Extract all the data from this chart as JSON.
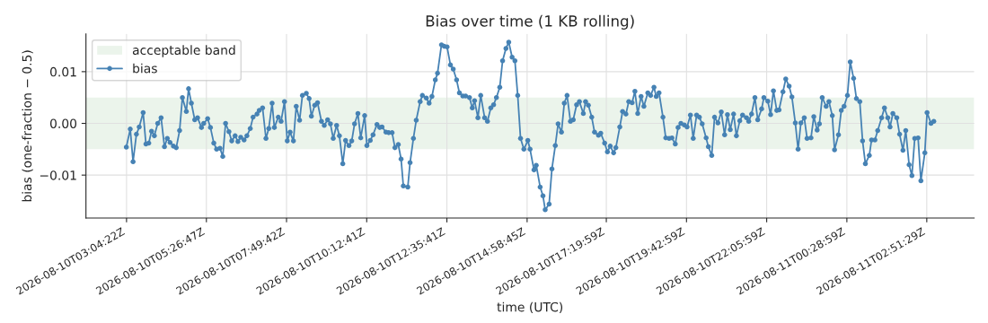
{
  "chart_data": {
    "type": "line",
    "title": "Bias over time (1 KB rolling)",
    "xlabel": "time (UTC)",
    "ylabel": "bias (one-fraction − 0.5)",
    "x": [
      "2026-08-10T03:04",
      "2026-08-10T03:11",
      "2026-08-10T03:16",
      "2026-08-10T03:22",
      "2026-08-10T03:27",
      "2026-08-10T03:34",
      "2026-08-10T03:39",
      "2026-08-10T03:44",
      "2026-08-10T03:49",
      "2026-08-10T03:54",
      "2026-08-10T04:00",
      "2026-08-10T04:06",
      "2026-08-10T04:12",
      "2026-08-10T04:17",
      "2026-08-10T04:22",
      "2026-08-10T04:28",
      "2026-08-10T04:33",
      "2026-08-10T04:39",
      "2026-08-10T04:44",
      "2026-08-10T04:51",
      "2026-08-10T04:55",
      "2026-08-10T05:00",
      "2026-08-10T05:06",
      "2026-08-10T05:11",
      "2026-08-10T05:18",
      "2026-08-10T05:22",
      "2026-08-10T05:29",
      "2026-08-10T05:34",
      "2026-08-10T05:40",
      "2026-08-10T05:45",
      "2026-08-10T05:51",
      "2026-08-10T05:56",
      "2026-08-10T06:01",
      "2026-08-10T06:07",
      "2026-08-10T06:12",
      "2026-08-10T06:18",
      "2026-08-10T06:23",
      "2026-08-10T06:28",
      "2026-08-10T06:34",
      "2026-08-10T06:39",
      "2026-08-10T06:45",
      "2026-08-10T06:50",
      "2026-08-10T06:57",
      "2026-08-10T07:01",
      "2026-08-10T07:07",
      "2026-08-10T07:13",
      "2026-08-10T07:18",
      "2026-08-10T07:24",
      "2026-08-10T07:28",
      "2026-08-10T07:35",
      "2026-08-10T07:40",
      "2026-08-10T07:46",
      "2026-08-10T07:51",
      "2026-08-10T07:56",
      "2026-08-10T08:02",
      "2026-08-10T08:07",
      "2026-08-10T08:13",
      "2026-08-10T08:18",
      "2026-08-10T08:25",
      "2026-08-10T08:30",
      "2026-08-10T08:34",
      "2026-08-10T08:40",
      "2026-08-10T08:45",
      "2026-08-10T08:52",
      "2026-08-10T08:57",
      "2026-08-10T09:03",
      "2026-08-10T09:08",
      "2026-08-10T09:13",
      "2026-08-10T09:19",
      "2026-08-10T09:24",
      "2026-08-10T09:30",
      "2026-08-10T09:35",
      "2026-08-10T09:41",
      "2026-08-10T09:46",
      "2026-08-10T09:51",
      "2026-08-10T09:57",
      "2026-08-10T10:02",
      "2026-08-10T10:09",
      "2026-08-10T10:13",
      "2026-08-10T10:19",
      "2026-08-10T10:24",
      "2026-08-10T10:31",
      "2026-08-10T10:36",
      "2026-08-10T10:40",
      "2026-08-10T10:47",
      "2026-08-10T10:52",
      "2026-08-10T10:58",
      "2026-08-10T11:03",
      "2026-08-10T11:09",
      "2026-08-10T11:14",
      "2026-08-10T11:18",
      "2026-08-10T11:26",
      "2026-08-10T11:30",
      "2026-08-10T11:36",
      "2026-08-10T11:41",
      "2026-08-10T11:48",
      "2026-08-10T11:52",
      "2026-08-10T11:59",
      "2026-08-10T12:04",
      "2026-08-10T12:09",
      "2026-08-10T12:15",
      "2026-08-10T12:19",
      "2026-08-10T12:26",
      "2026-08-10T12:31",
      "2026-08-10T12:36",
      "2026-08-10T12:42",
      "2026-08-10T12:47",
      "2026-08-10T12:53",
      "2026-08-10T12:58",
      "2026-08-10T13:04",
      "2026-08-10T13:09",
      "2026-08-10T13:16",
      "2026-08-10T13:21",
      "2026-08-10T13:25",
      "2026-08-10T13:31",
      "2026-08-10T13:36",
      "2026-08-10T13:43",
      "2026-08-10T13:48",
      "2026-08-10T13:54",
      "2026-08-10T13:59",
      "2026-08-10T14:04",
      "2026-08-10T14:10",
      "2026-08-10T14:15",
      "2026-08-10T14:21",
      "2026-08-10T14:26",
      "2026-08-10T14:32",
      "2026-08-10T14:37",
      "2026-08-10T14:42",
      "2026-08-10T14:47",
      "2026-08-10T14:53",
      "2026-08-10T15:00",
      "2026-08-10T15:04",
      "2026-08-10T15:11",
      "2026-08-10T15:15",
      "2026-08-10T15:22",
      "2026-08-10T15:27",
      "2026-08-10T15:31",
      "2026-08-10T15:38",
      "2026-08-10T15:43",
      "2026-08-10T15:49",
      "2026-08-10T15:54",
      "2026-08-10T16:00",
      "2026-08-10T16:05",
      "2026-08-10T16:10",
      "2026-08-10T16:16",
      "2026-08-10T16:21",
      "2026-08-10T16:27",
      "2026-08-10T16:32",
      "2026-08-10T16:39",
      "2026-08-10T16:43",
      "2026-08-10T16:48",
      "2026-08-10T16:54",
      "2026-08-10T16:59",
      "2026-08-10T17:06",
      "2026-08-10T17:10",
      "2026-08-10T17:17",
      "2026-08-10T17:22",
      "2026-08-10T17:27",
      "2026-08-10T17:33",
      "2026-08-10T17:37",
      "2026-08-10T17:44",
      "2026-08-10T17:49",
      "2026-08-10T17:55",
      "2026-08-10T18:00",
      "2026-08-10T18:06",
      "2026-08-10T18:11",
      "2026-08-10T18:16",
      "2026-08-10T18:22",
      "2026-08-10T18:27",
      "2026-08-10T18:34",
      "2026-08-10T18:39",
      "2026-08-10T18:45",
      "2026-08-10T18:49",
      "2026-08-10T18:54",
      "2026-08-10T19:01",
      "2026-08-10T19:06",
      "2026-08-10T19:12",
      "2026-08-10T19:17",
      "2026-08-10T19:23",
      "2026-08-10T19:28",
      "2026-08-10T19:33",
      "2026-08-10T19:39",
      "2026-08-10T19:44",
      "2026-08-10T19:50",
      "2026-08-10T19:55",
      "2026-08-10T20:01",
      "2026-08-10T20:06",
      "2026-08-10T20:11",
      "2026-08-10T20:18",
      "2026-08-10T20:22",
      "2026-08-10T20:28",
      "2026-08-10T20:33",
      "2026-08-10T20:39",
      "2026-08-10T20:45",
      "2026-08-10T20:51",
      "2026-08-10T20:56",
      "2026-08-10T21:01",
      "2026-08-10T21:07",
      "2026-08-10T21:12",
      "2026-08-10T21:18",
      "2026-08-10T21:23",
      "2026-08-10T21:30",
      "2026-08-10T21:34",
      "2026-08-10T21:39",
      "2026-08-10T21:45",
      "2026-08-10T21:50",
      "2026-08-10T21:57",
      "2026-08-10T22:01",
      "2026-08-10T22:08",
      "2026-08-10T22:13",
      "2026-08-10T22:18",
      "2026-08-10T22:24",
      "2026-08-10T22:28",
      "2026-08-10T22:35",
      "2026-08-10T22:40",
      "2026-08-10T22:46",
      "2026-08-10T22:51",
      "2026-08-10T22:57",
      "2026-08-10T23:02",
      "2026-08-10T23:07",
      "2026-08-10T23:13",
      "2026-08-10T23:18",
      "2026-08-10T23:25",
      "2026-08-10T23:30",
      "2026-08-10T23:36",
      "2026-08-10T23:40",
      "2026-08-10T23:45",
      "2026-08-10T23:52",
      "2026-08-10T23:57",
      "2026-08-11T00:03",
      "2026-08-11T00:07",
      "2026-08-11T00:14",
      "2026-08-11T00:19",
      "2026-08-11T00:24",
      "2026-08-11T00:30",
      "2026-08-11T00:35",
      "2026-08-11T00:41",
      "2026-08-11T00:46",
      "2026-08-11T00:52",
      "2026-08-11T00:57",
      "2026-08-11T01:02",
      "2026-08-11T01:09",
      "2026-08-11T01:13",
      "2026-08-11T01:19",
      "2026-08-11T01:24",
      "2026-08-11T01:31",
      "2026-08-11T01:36",
      "2026-08-11T01:42",
      "2026-08-11T01:46",
      "2026-08-11T01:51",
      "2026-08-11T01:58",
      "2026-08-11T02:03",
      "2026-08-11T02:09",
      "2026-08-11T02:14",
      "2026-08-11T02:20",
      "2026-08-11T02:25",
      "2026-08-11T02:30",
      "2026-08-11T02:36",
      "2026-08-11T02:41",
      "2026-08-11T02:48",
      "2026-08-11T02:52",
      "2026-08-11T02:59",
      "2026-08-11T03:04"
    ],
    "series": [
      {
        "name": "bias",
        "color": "#4682b4",
        "values": [
          -0.0046,
          -0.0011,
          -0.0074,
          -0.0021,
          -0.0007,
          0.0021,
          -0.004,
          -0.0038,
          -0.0015,
          -0.0024,
          0.0,
          0.0011,
          -0.0045,
          -0.0029,
          -0.0037,
          -0.0044,
          -0.0047,
          -0.0014,
          0.005,
          0.0023,
          0.0067,
          0.0039,
          0.0007,
          0.0011,
          -0.0008,
          0.0,
          0.0009,
          -0.0008,
          -0.0038,
          -0.005,
          -0.0048,
          -0.0064,
          0.0,
          -0.0016,
          -0.0034,
          -0.0024,
          -0.0035,
          -0.0027,
          -0.0032,
          -0.0024,
          -0.001,
          0.0012,
          0.0018,
          0.0025,
          0.003,
          -0.0029,
          -0.001,
          0.0039,
          -0.0008,
          0.0012,
          0.0004,
          0.0042,
          -0.0034,
          -0.0017,
          -0.0034,
          0.0033,
          0.0006,
          0.0054,
          0.0058,
          0.0048,
          0.0014,
          0.0035,
          0.004,
          0.0004,
          -0.0004,
          0.0007,
          -0.0001,
          -0.0029,
          -0.0004,
          -0.0024,
          -0.0078,
          -0.0033,
          -0.0043,
          -0.0034,
          -0.0001,
          0.0019,
          -0.0028,
          0.0015,
          -0.0043,
          -0.0033,
          -0.0022,
          -0.0002,
          -0.0008,
          -0.0007,
          -0.0017,
          -0.0018,
          -0.0018,
          -0.0047,
          -0.0041,
          -0.0069,
          -0.0121,
          -0.0123,
          -0.0076,
          -0.0029,
          0.0006,
          0.0042,
          0.0054,
          0.0049,
          0.0039,
          0.0052,
          0.0084,
          0.0097,
          0.0152,
          0.0149,
          0.0148,
          0.0113,
          0.0105,
          0.0084,
          0.0059,
          0.0053,
          0.0053,
          0.005,
          0.003,
          0.0044,
          0.0011,
          0.0054,
          0.0011,
          0.0004,
          0.003,
          0.0036,
          0.005,
          0.007,
          0.0121,
          0.0145,
          0.0157,
          0.0128,
          0.0121,
          0.0054,
          -0.0029,
          -0.005,
          -0.0033,
          -0.005,
          -0.009,
          -0.0081,
          -0.0123,
          -0.014,
          -0.0167,
          -0.0156,
          -0.0088,
          -0.0043,
          -0.0001,
          -0.0017,
          0.0039,
          0.0054,
          0.0004,
          0.0007,
          0.0036,
          0.0042,
          0.0019,
          0.0042,
          0.0035,
          0.0012,
          -0.0017,
          -0.0023,
          -0.0019,
          -0.0038,
          -0.0055,
          -0.0044,
          -0.0057,
          -0.0047,
          -0.0007,
          0.0023,
          0.0018,
          0.0042,
          0.004,
          0.0062,
          0.0019,
          0.0052,
          0.0033,
          0.0059,
          0.0054,
          0.007,
          0.0052,
          0.0059,
          0.0012,
          -0.0028,
          -0.0029,
          -0.0028,
          -0.004,
          -0.0008,
          0.0,
          -0.0003,
          -0.0007,
          0.0016,
          -0.0029,
          0.0016,
          0.0012,
          -0.0001,
          -0.0028,
          -0.0045,
          -0.0062,
          0.0012,
          0.0001,
          0.0022,
          -0.0022,
          0.0017,
          -0.0012,
          0.0018,
          -0.0024,
          0.0005,
          0.0016,
          0.0011,
          0.0004,
          0.0018,
          0.005,
          0.0007,
          0.0028,
          0.005,
          0.0043,
          0.0017,
          0.0063,
          0.0025,
          0.0026,
          0.0061,
          0.0086,
          0.0072,
          0.0051,
          0.0001,
          -0.005,
          0.0001,
          0.0011,
          -0.0029,
          -0.0028,
          0.0013,
          -0.0013,
          -0.0001,
          0.005,
          0.0033,
          0.0042,
          0.0015,
          -0.0051,
          -0.0022,
          0.0025,
          0.0033,
          0.0054,
          0.0119,
          0.0087,
          0.0048,
          0.0042,
          -0.0034,
          -0.0078,
          -0.0062,
          -0.0032,
          -0.0032,
          -0.0014,
          0.0011,
          0.003,
          0.0011,
          -0.0007,
          0.0019,
          0.0011,
          -0.0021,
          -0.0052,
          -0.0014,
          -0.008,
          -0.0101,
          -0.0029,
          -0.0028,
          -0.0111,
          -0.0057,
          0.0021,
          0.0,
          0.0004
        ]
      }
    ],
    "bands": [
      {
        "axis": "y",
        "from": -0.005,
        "to": 0.005,
        "label": "acceptable band",
        "color": "#ebf4eb"
      }
    ],
    "xlim": [
      "2026-08-10T01:52",
      "2026-08-11T04:16"
    ],
    "ylim": [
      -0.0183,
      0.0173
    ],
    "xticks": [
      {
        "value": "2026-08-10T03:04:22",
        "label": "2026-08-10T03:04:22Z"
      },
      {
        "value": "2026-08-10T05:26:47",
        "label": "2026-08-10T05:26:47Z"
      },
      {
        "value": "2026-08-10T07:49:42",
        "label": "2026-08-10T07:49:42Z"
      },
      {
        "value": "2026-08-10T10:12:41",
        "label": "2026-08-10T10:12:41Z"
      },
      {
        "value": "2026-08-10T12:35:41",
        "label": "2026-08-10T12:35:41Z"
      },
      {
        "value": "2026-08-10T14:58:45",
        "label": "2026-08-10T14:58:45Z"
      },
      {
        "value": "2026-08-10T17:19:59",
        "label": "2026-08-10T17:19:59Z"
      },
      {
        "value": "2026-08-10T19:42:59",
        "label": "2026-08-10T19:42:59Z"
      },
      {
        "value": "2026-08-10T22:05:59",
        "label": "2026-08-10T22:05:59Z"
      },
      {
        "value": "2026-08-11T00:28:59",
        "label": "2026-08-11T00:28:59Z"
      },
      {
        "value": "2026-08-11T02:51:29",
        "label": "2026-08-11T02:51:29Z"
      }
    ],
    "yticks": [
      {
        "value": -0.01,
        "label": "−0.01"
      },
      {
        "value": 0,
        "label": "0.00"
      },
      {
        "value": 0.01,
        "label": "0.01"
      }
    ],
    "grid": true,
    "legend": "top left",
    "marker": "circle",
    "line_style": "solid"
  }
}
